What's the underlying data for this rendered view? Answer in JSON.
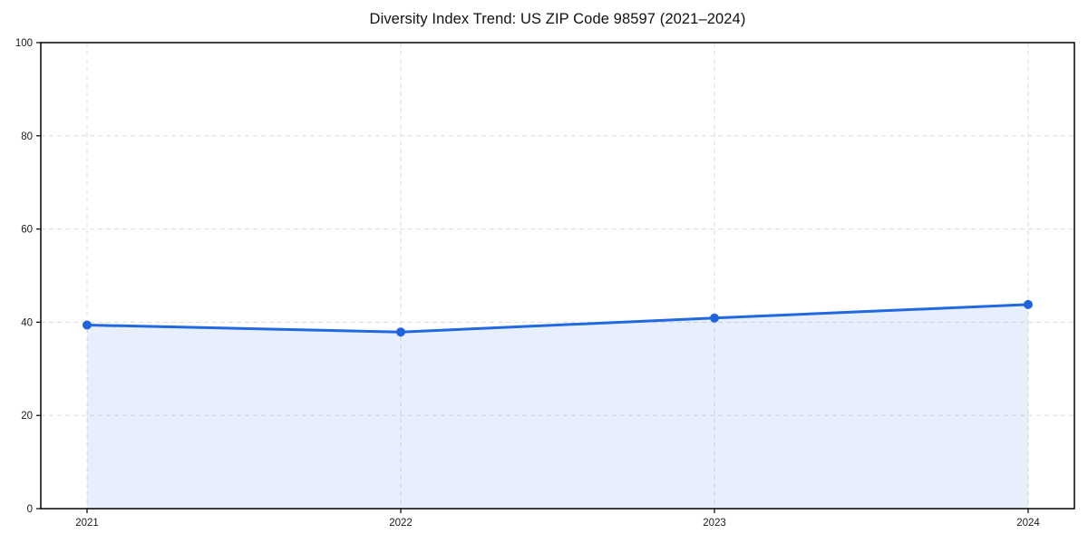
{
  "chart_data": {
    "type": "area",
    "title": "Diversity Index Trend: US ZIP Code 98597 (2021–2024)",
    "categories": [
      "2021",
      "2022",
      "2023",
      "2024"
    ],
    "values": [
      39.4,
      37.9,
      40.9,
      43.8
    ],
    "series_name": "Diversity Index",
    "xlabel": "",
    "ylabel": "",
    "ylim": [
      0,
      100
    ],
    "yticks": [
      0,
      20,
      40,
      60,
      80,
      100
    ],
    "grid": true,
    "grid_style": "dashed",
    "legend_position": "none",
    "line_color": "#2169e1",
    "marker_color": "#1f63dd",
    "fill_color": "#2169e1",
    "fill_opacity": 0.11,
    "grid_color": "#dcdcdc",
    "axis_color": "#000000",
    "tick_label_color": "#1a1a1a",
    "background_color": "#ffffff"
  }
}
